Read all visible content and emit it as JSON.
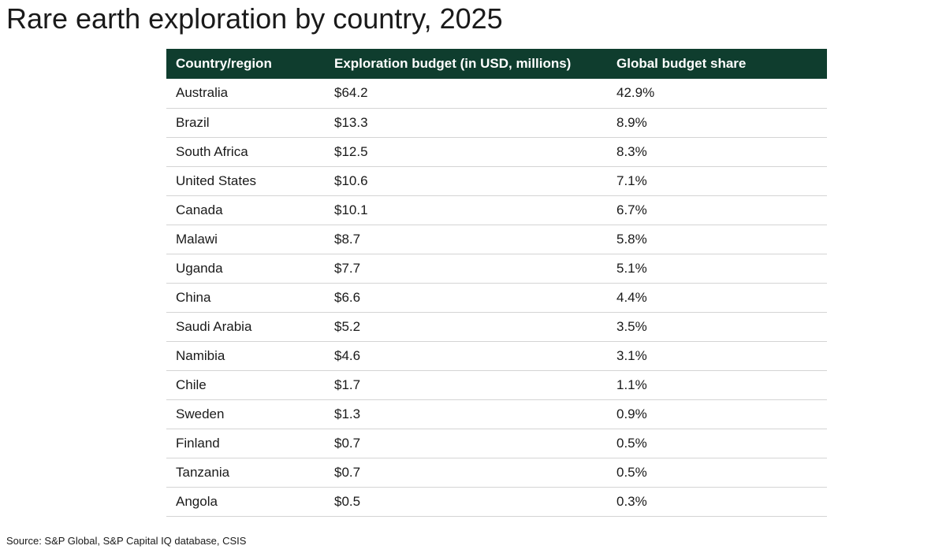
{
  "chart_data": {
    "type": "table",
    "title": "Rare earth exploration by country, 2025",
    "columns": [
      "Country/region",
      "Exploration budget (in USD, millions)",
      "Global budget share"
    ],
    "rows": [
      {
        "country": "Australia",
        "budget": "$64.2",
        "share": "42.9%"
      },
      {
        "country": "Brazil",
        "budget": "$13.3",
        "share": "8.9%"
      },
      {
        "country": "South Africa",
        "budget": "$12.5",
        "share": "8.3%"
      },
      {
        "country": "United States",
        "budget": "$10.6",
        "share": "7.1%"
      },
      {
        "country": "Canada",
        "budget": "$10.1",
        "share": "6.7%"
      },
      {
        "country": "Malawi",
        "budget": "$8.7",
        "share": "5.8%"
      },
      {
        "country": "Uganda",
        "budget": "$7.7",
        "share": "5.1%"
      },
      {
        "country": "China",
        "budget": "$6.6",
        "share": "4.4%"
      },
      {
        "country": "Saudi Arabia",
        "budget": "$5.2",
        "share": "3.5%"
      },
      {
        "country": "Namibia",
        "budget": "$4.6",
        "share": "3.1%"
      },
      {
        "country": "Chile",
        "budget": "$1.7",
        "share": "1.1%"
      },
      {
        "country": "Sweden",
        "budget": "$1.3",
        "share": "0.9%"
      },
      {
        "country": "Finland",
        "budget": "$0.7",
        "share": "0.5%"
      },
      {
        "country": "Tanzania",
        "budget": "$0.7",
        "share": "0.5%"
      },
      {
        "country": "Angola",
        "budget": "$0.5",
        "share": "0.3%"
      }
    ],
    "source": "Source: S&P Global, S&P Capital IQ database, CSIS"
  },
  "colors": {
    "header_background": "#0f3d2e",
    "header_text": "#ffffff",
    "row_divider": "#d4d4d4"
  }
}
